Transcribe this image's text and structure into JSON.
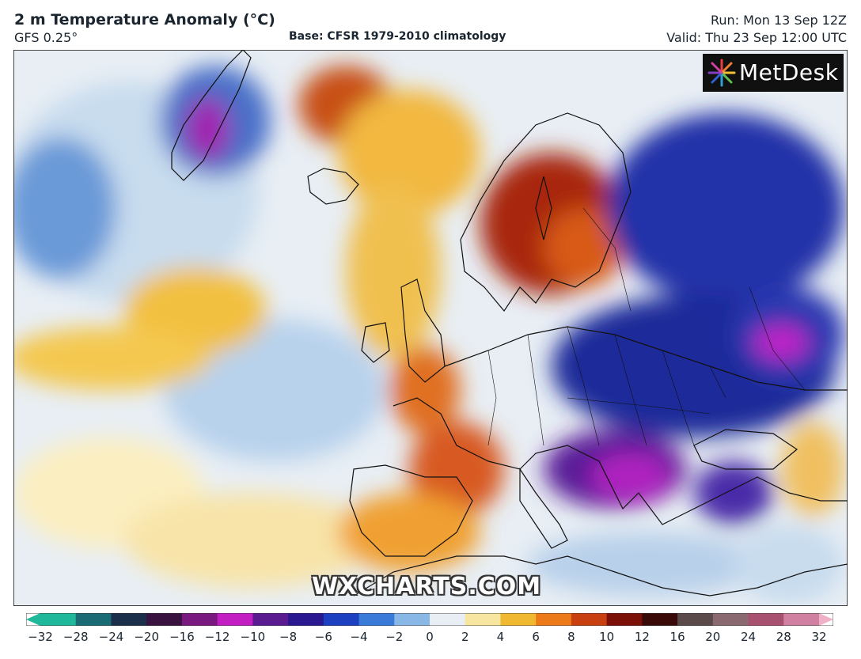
{
  "header": {
    "title": "2 m Temperature Anomaly (°C)",
    "model": "GFS 0.25°",
    "base": "Base: CFSR 1979-2010 climatology",
    "run": "Run: Mon 13 Sep 12Z",
    "valid": "Valid: Thu 23 Sep 12:00 UTC"
  },
  "logo": {
    "text": "MetDesk",
    "icon": "metdesk-starburst-icon"
  },
  "watermark": "WXCHARTS.COM",
  "colorbar": {
    "ticks": [
      "−32",
      "−28",
      "−24",
      "−20",
      "−16",
      "−12",
      "−10",
      "−8",
      "−6",
      "−4",
      "−2",
      "0",
      "2",
      "4",
      "6",
      "8",
      "10",
      "12",
      "16",
      "20",
      "24",
      "28",
      "32"
    ],
    "colors": [
      "#1fb89a",
      "#1a6b73",
      "#1b2e4a",
      "#3a1240",
      "#7a1a80",
      "#c21ec2",
      "#5a1a90",
      "#2a1890",
      "#1d40c0",
      "#3a7ad8",
      "#8ab8e6",
      "#e8eef4",
      "#f6e6a0",
      "#f0b830",
      "#ec7a18",
      "#c84010",
      "#7a1008",
      "#3a0a08",
      "#5a4a4a",
      "#8a6a70",
      "#a85070",
      "#d080a0",
      "#f0b0c8"
    ]
  },
  "colors": {
    "warm": "#c84010",
    "cold": "#2a1890",
    "neutral": "#e8eef4"
  }
}
